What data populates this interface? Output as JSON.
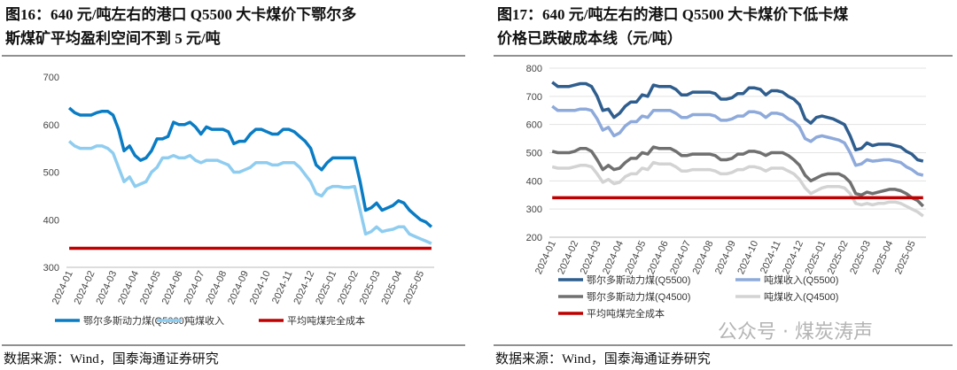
{
  "chart_data": [
    {
      "type": "line",
      "title": [
        "图16：640 元/吨左右的港口 Q5500 大卡煤价下鄂尔多",
        "斯煤矿平均盈利空间不到 5 元/吨"
      ],
      "source": "数据来源：Wind，国泰海通证券研究",
      "categories": [
        "2024-01",
        null,
        null,
        null,
        "2024-02",
        null,
        null,
        null,
        "2024-03",
        null,
        null,
        null,
        "2024-04",
        null,
        null,
        null,
        "2024-05",
        null,
        null,
        null,
        "2024-06",
        null,
        null,
        null,
        "2024-07",
        null,
        null,
        null,
        "2024-08",
        null,
        null,
        null,
        "2024-09",
        null,
        null,
        null,
        "2024-10",
        null,
        null,
        null,
        "2024-11",
        null,
        null,
        null,
        "2024-12",
        null,
        null,
        null,
        "2025-01",
        null,
        null,
        null,
        "2025-02",
        null,
        null,
        null,
        "2025-03",
        null,
        null,
        null,
        "2025-04",
        null,
        null,
        null,
        "2025-05",
        null,
        null
      ],
      "ylim": [
        300,
        700
      ],
      "yticks": [
        300,
        400,
        500,
        600,
        700
      ],
      "grid": false,
      "series": [
        {
          "name": "鄂尔多斯动力煤(Q5000)",
          "color": "#0a7cc4",
          "values": [
            635,
            625,
            620,
            620,
            620,
            625,
            628,
            628,
            620,
            590,
            545,
            555,
            535,
            525,
            530,
            545,
            570,
            570,
            575,
            605,
            600,
            600,
            605,
            595,
            580,
            595,
            590,
            590,
            590,
            585,
            560,
            565,
            565,
            580,
            590,
            590,
            585,
            580,
            580,
            590,
            590,
            585,
            575,
            565,
            550,
            515,
            505,
            520,
            530,
            530,
            530,
            530,
            530,
            480,
            420,
            425,
            435,
            420,
            425,
            430,
            440,
            435,
            420,
            410,
            400,
            395,
            385
          ]
        },
        {
          "name": "吨煤收入",
          "color": "#8fcdf0",
          "values": [
            565,
            555,
            550,
            550,
            550,
            555,
            555,
            550,
            540,
            510,
            480,
            490,
            470,
            475,
            480,
            500,
            510,
            530,
            530,
            535,
            530,
            530,
            535,
            525,
            520,
            525,
            525,
            525,
            520,
            515,
            500,
            500,
            505,
            510,
            520,
            520,
            520,
            515,
            515,
            520,
            520,
            520,
            510,
            495,
            480,
            455,
            450,
            465,
            470,
            470,
            468,
            468,
            470,
            420,
            370,
            375,
            385,
            375,
            378,
            380,
            385,
            385,
            370,
            365,
            360,
            355,
            350
          ]
        },
        {
          "name": "平均吨煤完全成本",
          "color": "#c00000",
          "values": [
            340,
            340,
            340,
            340,
            340,
            340,
            340,
            340,
            340,
            340,
            340,
            340,
            340,
            340,
            340,
            340,
            340,
            340,
            340,
            340,
            340,
            340,
            340,
            340,
            340,
            340,
            340,
            340,
            340,
            340,
            340,
            340,
            340,
            340,
            340,
            340,
            340,
            340,
            340,
            340,
            340,
            340,
            340,
            340,
            340,
            340,
            340,
            340,
            340,
            340,
            340,
            340,
            340,
            340,
            340,
            340,
            340,
            340,
            340,
            340,
            340,
            340,
            340,
            340,
            340,
            340,
            340
          ]
        }
      ]
    },
    {
      "type": "line",
      "title": [
        "图17：640 元/吨左右的港口 Q5500 大卡煤价下低卡煤",
        "价格已跌破成本线（元/吨）"
      ],
      "source": "数据来源：Wind，国泰海通证券研究",
      "watermark": "公众号 · 煤炭涛声",
      "categories": [
        "2024-01",
        null,
        null,
        null,
        "2024-02",
        null,
        null,
        null,
        "2024-03",
        null,
        null,
        null,
        "2024-04",
        null,
        null,
        null,
        "2024-05",
        null,
        null,
        null,
        "2024-06",
        null,
        null,
        null,
        "2024-07",
        null,
        null,
        null,
        "2024-08",
        null,
        null,
        null,
        "2024-09",
        null,
        null,
        null,
        "2024-10",
        null,
        null,
        null,
        "2024-11",
        null,
        null,
        null,
        "2024-12",
        null,
        null,
        null,
        "2025-01",
        null,
        null,
        null,
        "2025-02",
        null,
        null,
        null,
        "2025-03",
        null,
        null,
        null,
        "2025-04",
        null,
        null,
        null,
        "2025-05",
        null,
        null
      ],
      "ylim": [
        200,
        800
      ],
      "yticks": [
        200,
        300,
        400,
        500,
        600,
        700,
        800
      ],
      "grid": true,
      "series": [
        {
          "name": "鄂尔多斯动力煤(Q5500)",
          "color": "#2f5e8e",
          "values": [
            750,
            735,
            735,
            735,
            740,
            745,
            745,
            735,
            700,
            650,
            655,
            625,
            640,
            665,
            680,
            680,
            705,
            700,
            740,
            735,
            735,
            735,
            725,
            705,
            705,
            715,
            715,
            715,
            715,
            710,
            690,
            690,
            695,
            710,
            710,
            730,
            730,
            725,
            705,
            720,
            720,
            715,
            700,
            690,
            670,
            620,
            605,
            625,
            630,
            625,
            620,
            610,
            600,
            560,
            510,
            515,
            535,
            525,
            530,
            530,
            530,
            525,
            520,
            505,
            495,
            475,
            470
          ]
        },
        {
          "name": "吨煤收入(Q5500)",
          "color": "#8eaadb",
          "values": [
            665,
            650,
            650,
            650,
            650,
            655,
            655,
            650,
            620,
            580,
            590,
            560,
            570,
            595,
            610,
            610,
            630,
            625,
            650,
            650,
            650,
            650,
            640,
            625,
            625,
            635,
            635,
            635,
            635,
            630,
            615,
            615,
            620,
            630,
            630,
            645,
            645,
            640,
            625,
            640,
            640,
            635,
            620,
            610,
            590,
            550,
            540,
            555,
            560,
            555,
            550,
            545,
            535,
            500,
            455,
            460,
            475,
            470,
            472,
            475,
            475,
            470,
            465,
            450,
            440,
            425,
            420
          ]
        },
        {
          "name": "鄂尔多斯动力煤(Q4500)",
          "color": "#707070",
          "values": [
            505,
            500,
            500,
            500,
            505,
            515,
            515,
            505,
            475,
            440,
            455,
            440,
            445,
            465,
            480,
            480,
            500,
            495,
            520,
            515,
            515,
            515,
            505,
            490,
            490,
            495,
            495,
            495,
            495,
            490,
            475,
            475,
            480,
            495,
            495,
            505,
            505,
            500,
            490,
            500,
            500,
            500,
            490,
            475,
            455,
            420,
            400,
            410,
            420,
            425,
            425,
            425,
            415,
            395,
            355,
            350,
            360,
            355,
            360,
            365,
            370,
            370,
            365,
            355,
            340,
            330,
            310
          ]
        },
        {
          "name": "吨煤收入(Q4500)",
          "color": "#d3d3d3",
          "values": [
            450,
            445,
            445,
            445,
            450,
            455,
            455,
            450,
            425,
            395,
            405,
            390,
            395,
            415,
            425,
            425,
            445,
            440,
            465,
            460,
            460,
            460,
            450,
            435,
            435,
            440,
            440,
            440,
            440,
            435,
            425,
            425,
            430,
            440,
            440,
            450,
            450,
            445,
            435,
            445,
            445,
            445,
            435,
            425,
            405,
            375,
            355,
            365,
            375,
            380,
            380,
            380,
            375,
            355,
            320,
            315,
            320,
            315,
            320,
            320,
            325,
            325,
            320,
            310,
            300,
            290,
            275
          ]
        },
        {
          "name": "平均吨煤完全成本",
          "color": "#c00000",
          "values": [
            340,
            340,
            340,
            340,
            340,
            340,
            340,
            340,
            340,
            340,
            340,
            340,
            340,
            340,
            340,
            340,
            340,
            340,
            340,
            340,
            340,
            340,
            340,
            340,
            340,
            340,
            340,
            340,
            340,
            340,
            340,
            340,
            340,
            340,
            340,
            340,
            340,
            340,
            340,
            340,
            340,
            340,
            340,
            340,
            340,
            340,
            340,
            340,
            340,
            340,
            340,
            340,
            340,
            340,
            340,
            340,
            340,
            340,
            340,
            340,
            340,
            340,
            340,
            340,
            340,
            340,
            340
          ]
        }
      ]
    }
  ]
}
